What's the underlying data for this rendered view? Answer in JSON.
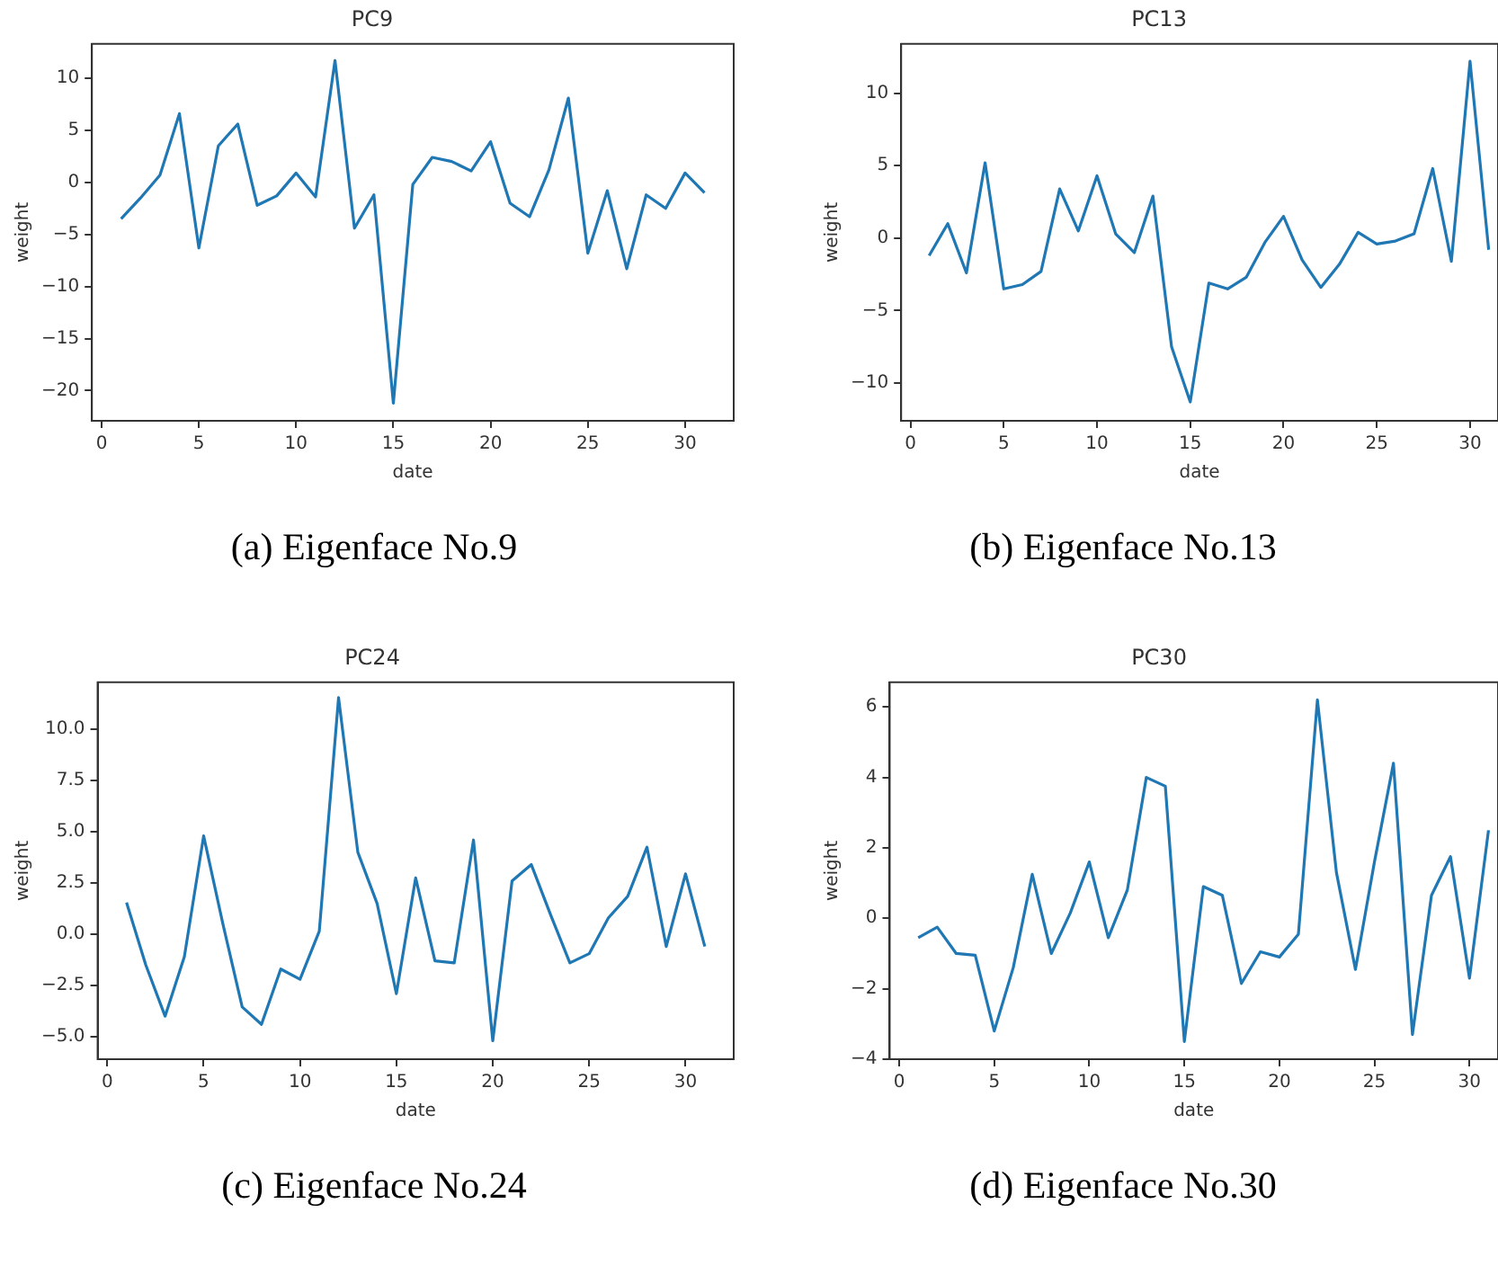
{
  "chart_data": [
    {
      "type": "line",
      "title": "PC9",
      "xlabel": "date",
      "ylabel": "weight",
      "color": "#1f77b4",
      "annotations": [
        "(a) Eigenface No.9"
      ],
      "x": [
        1,
        2,
        3,
        4,
        5,
        6,
        7,
        8,
        9,
        10,
        11,
        12,
        13,
        14,
        15,
        16,
        17,
        18,
        19,
        20,
        21,
        22,
        23,
        24,
        25,
        26,
        27,
        28,
        29,
        30,
        31
      ],
      "values": [
        -3.5,
        -1.5,
        0.7,
        6.6,
        -6.3,
        3.5,
        5.6,
        -2.2,
        -1.3,
        0.9,
        -1.4,
        11.7,
        -4.4,
        -1.2,
        -21.2,
        -0.2,
        2.4,
        2.0,
        1.1,
        3.9,
        -2.0,
        -3.3,
        1.2,
        8.1,
        -6.8,
        -0.8,
        -8.3,
        -1.2,
        -2.5,
        0.9,
        -1.0
      ],
      "xlim": [
        -0.5,
        32.5
      ],
      "ylim": [
        -22.9,
        13.3
      ],
      "xticks": [
        0,
        5,
        10,
        15,
        20,
        25,
        30
      ],
      "yticks": [
        {
          "value": -20,
          "label": "−20"
        },
        {
          "value": -15,
          "label": "−15"
        },
        {
          "value": -10,
          "label": "−10"
        },
        {
          "value": -5,
          "label": "−5"
        },
        0,
        5,
        10
      ]
    },
    {
      "type": "line",
      "title": "PC13",
      "xlabel": "date",
      "ylabel": "weight",
      "color": "#1f77b4",
      "annotations": [
        "(b) Eigenface No.13"
      ],
      "x": [
        1,
        2,
        3,
        4,
        5,
        6,
        7,
        8,
        9,
        10,
        11,
        12,
        13,
        14,
        15,
        16,
        17,
        18,
        19,
        20,
        21,
        22,
        23,
        24,
        25,
        26,
        27,
        28,
        29,
        30,
        31
      ],
      "values": [
        -1.2,
        1.0,
        -2.4,
        5.2,
        -3.5,
        -3.2,
        -2.3,
        3.4,
        0.5,
        4.3,
        0.3,
        -1.0,
        2.9,
        -7.5,
        -11.3,
        -3.1,
        -3.5,
        -2.7,
        -0.3,
        1.5,
        -1.5,
        -3.4,
        -1.8,
        0.4,
        -0.4,
        -0.2,
        0.3,
        4.8,
        -1.6,
        12.2,
        -0.8
      ],
      "xlim": [
        -0.5,
        31.5
      ],
      "ylim": [
        -12.6,
        13.4
      ],
      "xticks": [
        0,
        5,
        10,
        15,
        20,
        25,
        30
      ],
      "yticks": [
        {
          "value": -10,
          "label": "−10"
        },
        {
          "value": -5,
          "label": "−5"
        },
        0,
        5,
        10
      ]
    },
    {
      "type": "line",
      "title": "PC24",
      "xlabel": "date",
      "ylabel": "weight",
      "color": "#1f77b4",
      "annotations": [
        "(c) Eigenface No.24"
      ],
      "x": [
        1,
        2,
        3,
        4,
        5,
        6,
        7,
        8,
        9,
        10,
        11,
        12,
        13,
        14,
        15,
        16,
        17,
        18,
        19,
        20,
        21,
        22,
        23,
        24,
        25,
        26,
        27,
        28,
        29,
        30,
        31
      ],
      "values": [
        1.55,
        -1.5,
        -4.0,
        -1.1,
        4.8,
        0.5,
        -3.55,
        -4.4,
        -1.7,
        -2.2,
        0.15,
        11.55,
        4.0,
        1.5,
        -2.9,
        2.75,
        -1.3,
        -1.4,
        4.6,
        -5.2,
        2.6,
        3.4,
        0.95,
        -1.4,
        -0.95,
        0.8,
        1.85,
        4.25,
        -0.6,
        2.95,
        -0.6
      ],
      "xlim": [
        -0.5,
        32.5
      ],
      "ylim": [
        -6.1,
        12.3
      ],
      "xticks": [
        0,
        5,
        10,
        15,
        20,
        25,
        30
      ],
      "yticks": [
        {
          "value": -5,
          "label": "−5.0"
        },
        {
          "value": -2.5,
          "label": "−2.5"
        },
        {
          "value": 0,
          "label": "0.0"
        },
        {
          "value": 2.5,
          "label": "2.5"
        },
        {
          "value": 5,
          "label": "5.0"
        },
        {
          "value": 7.5,
          "label": "7.5"
        },
        {
          "value": 10,
          "label": "10.0"
        }
      ]
    },
    {
      "type": "line",
      "title": "PC30",
      "xlabel": "date",
      "ylabel": "weight",
      "color": "#1f77b4",
      "annotations": [
        "(d) Eigenface No.30"
      ],
      "x": [
        1,
        2,
        3,
        4,
        5,
        6,
        7,
        8,
        9,
        10,
        11,
        12,
        13,
        14,
        15,
        16,
        17,
        18,
        19,
        20,
        21,
        22,
        23,
        24,
        25,
        26,
        27,
        28,
        29,
        30,
        31
      ],
      "values": [
        -0.55,
        -0.25,
        -1.0,
        -1.05,
        -3.2,
        -1.4,
        1.25,
        -1.0,
        0.15,
        1.6,
        -0.55,
        0.8,
        4.0,
        3.75,
        -3.5,
        0.9,
        0.65,
        -1.85,
        -0.95,
        -1.1,
        -0.45,
        6.2,
        1.3,
        -1.45,
        1.6,
        4.4,
        -3.3,
        0.65,
        1.75,
        -1.7,
        2.5
      ],
      "xlim": [
        -0.5,
        31.5
      ],
      "ylim": [
        -4.0,
        6.7
      ],
      "xticks": [
        0,
        5,
        10,
        15,
        20,
        25,
        30
      ],
      "yticks": [
        {
          "value": -4,
          "label": "−4"
        },
        {
          "value": -2,
          "label": "−2"
        },
        0,
        2,
        4,
        6
      ]
    }
  ]
}
